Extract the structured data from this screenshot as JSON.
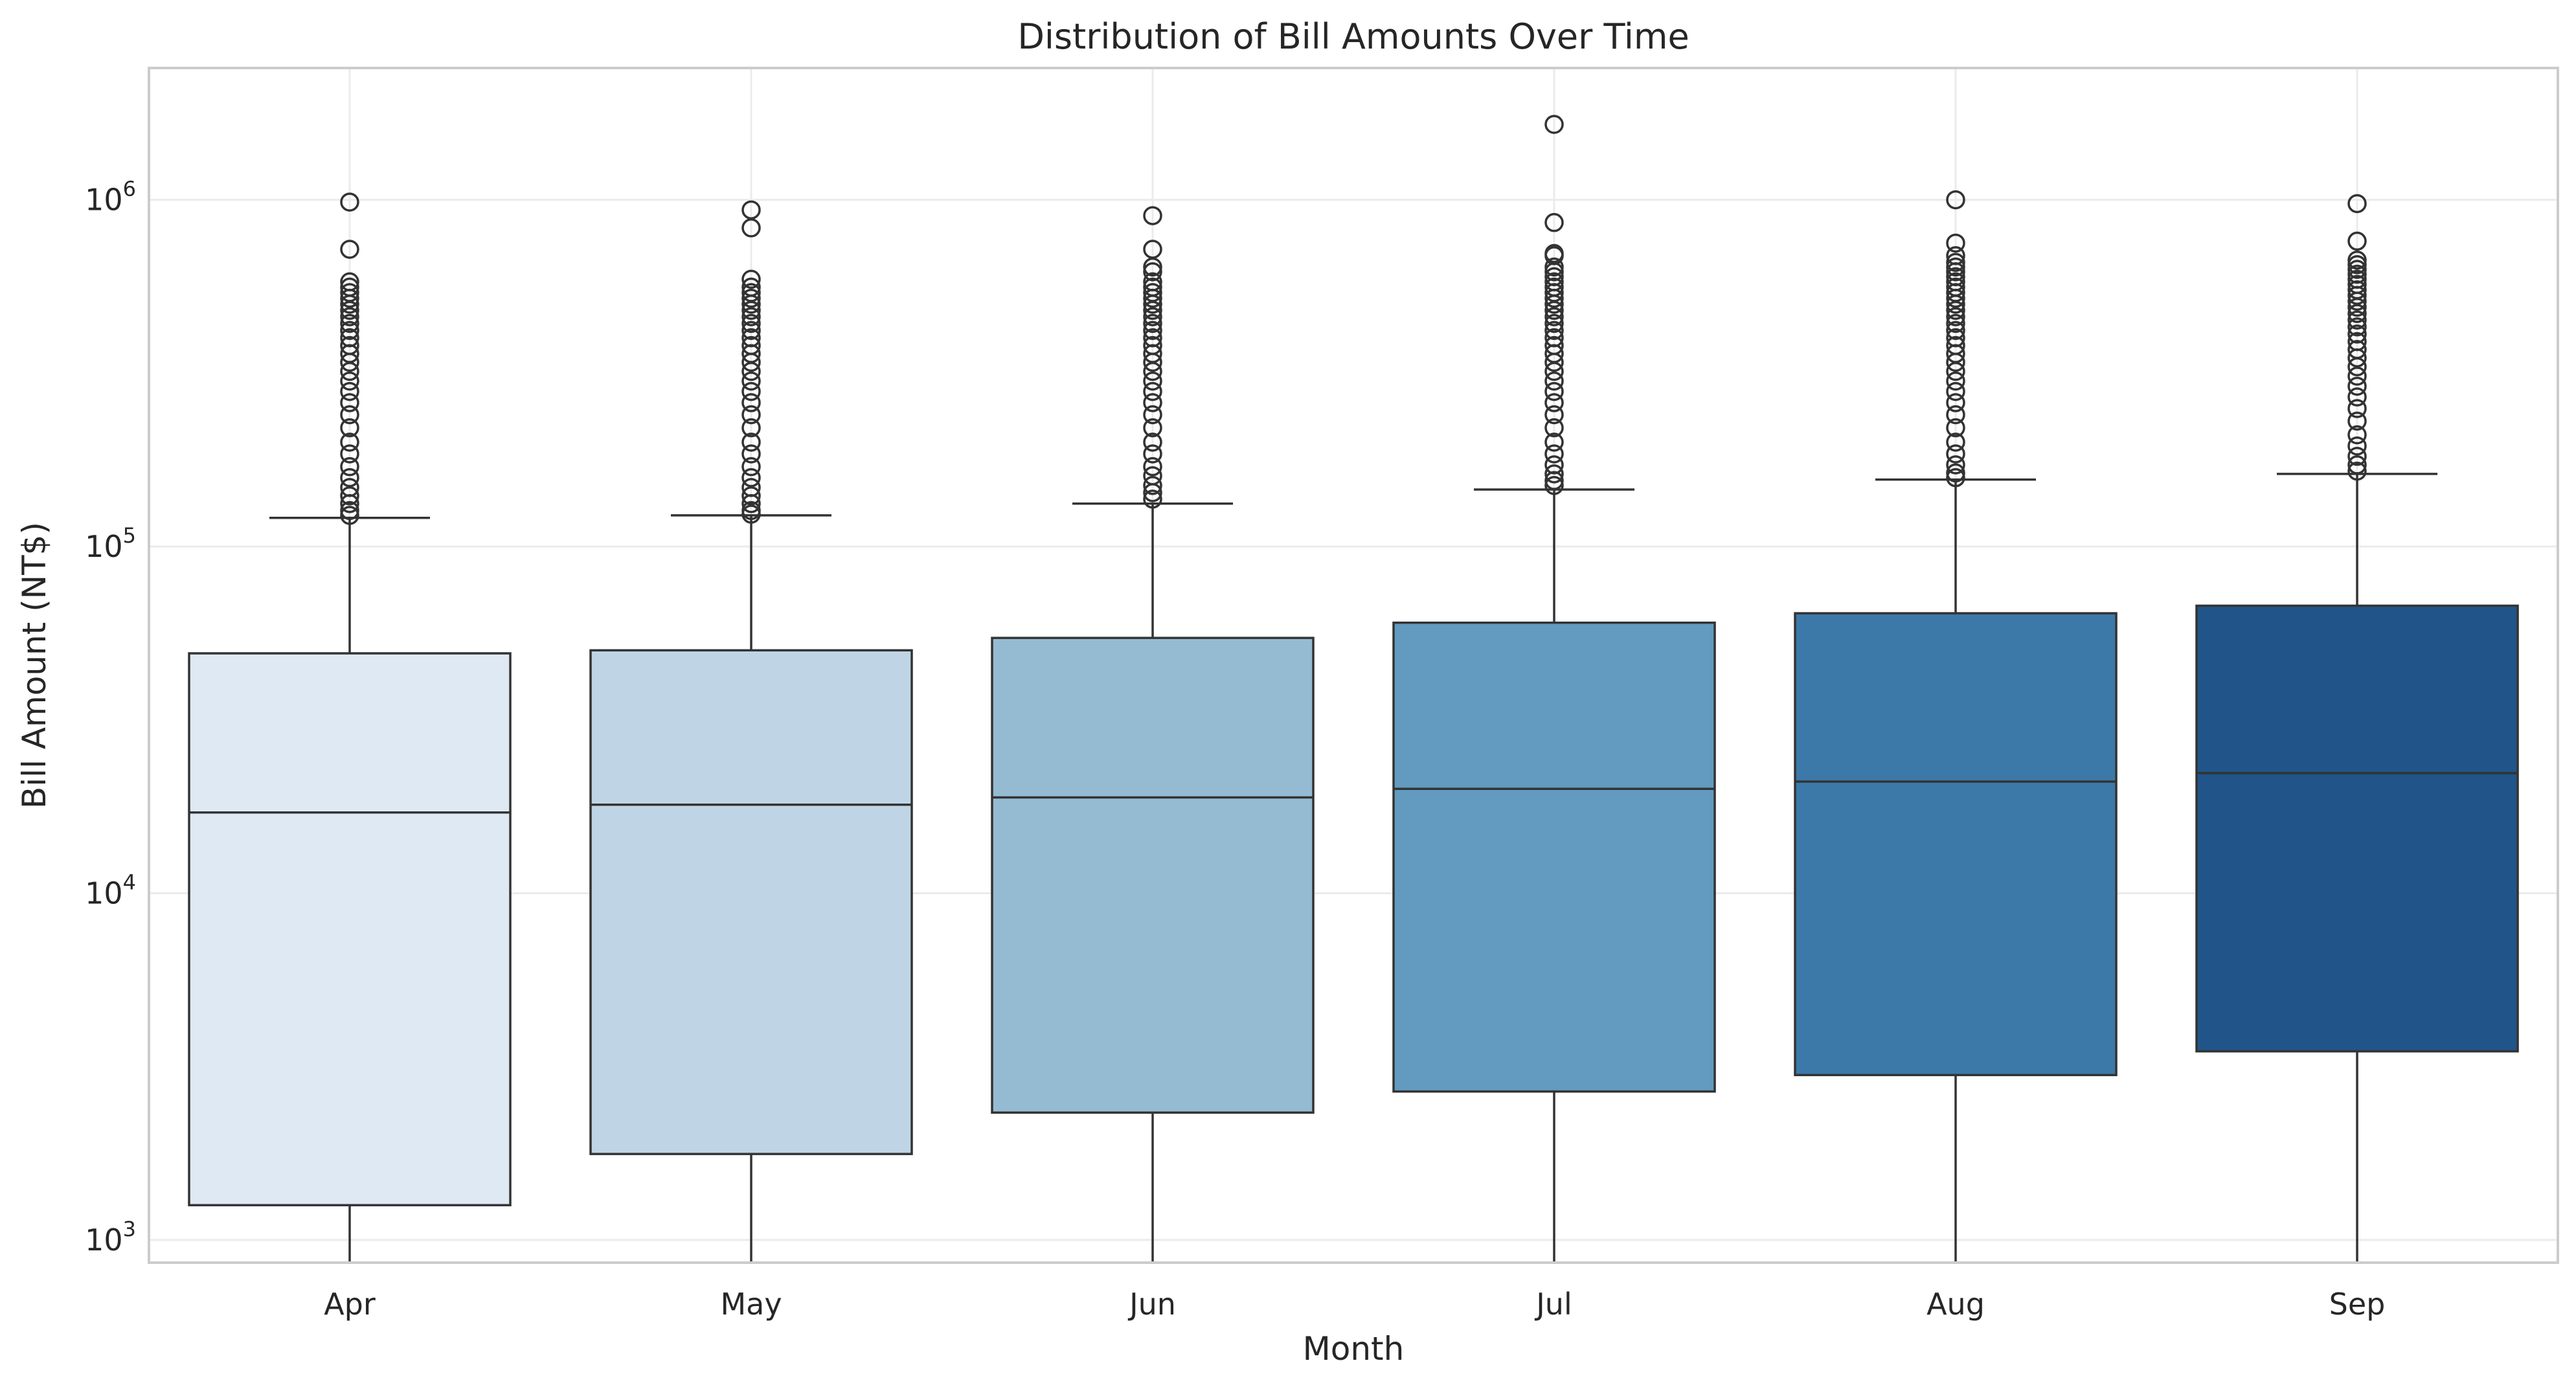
{
  "chart_data": {
    "type": "box",
    "title": "Distribution of Bill Amounts Over Time",
    "xlabel": "Month",
    "ylabel": "Bill Amount (NT$)",
    "yscale": "log",
    "ylim": [
      860,
      2400000
    ],
    "y_ticks": [
      {
        "value": 1000,
        "base": "10",
        "exp": "3"
      },
      {
        "value": 10000,
        "base": "10",
        "exp": "4"
      },
      {
        "value": 100000,
        "base": "10",
        "exp": "5"
      },
      {
        "value": 1000000,
        "base": "10",
        "exp": "6"
      }
    ],
    "grid": true,
    "categories": [
      "Apr",
      "May",
      "Jun",
      "Jul",
      "Aug",
      "Sep"
    ],
    "colors": [
      "#dfe9f4",
      "#bfd5e6",
      "#95bbd3",
      "#629bbf",
      "#3c79a9",
      "#215589"
    ],
    "boxes": [
      {
        "month": "Apr",
        "whisker_low": 860,
        "q1": 1260,
        "median": 17100,
        "q3": 49200,
        "whisker_high": 121000,
        "outliers": [
          985000,
          720000,
          580000,
          560000,
          540000,
          520000,
          500000,
          480000,
          460000,
          440000,
          420000,
          400000,
          380000,
          360000,
          340000,
          320000,
          300000,
          280000,
          260000,
          240000,
          220000,
          200000,
          185000,
          170000,
          158000,
          148000,
          140000,
          133000,
          127000,
          123000
        ]
      },
      {
        "month": "May",
        "whisker_low": 860,
        "q1": 1770,
        "median": 18000,
        "q3": 50200,
        "whisker_high": 123000,
        "outliers": [
          935000,
          830000,
          590000,
          560000,
          540000,
          520000,
          500000,
          480000,
          460000,
          440000,
          420000,
          400000,
          380000,
          360000,
          340000,
          320000,
          300000,
          280000,
          260000,
          240000,
          220000,
          200000,
          185000,
          170000,
          158000,
          148000,
          140000,
          133000,
          127000,
          124000
        ]
      },
      {
        "month": "Jun",
        "whisker_low": 860,
        "q1": 2330,
        "median": 18900,
        "q3": 54500,
        "whisker_high": 133000,
        "outliers": [
          900000,
          720000,
          640000,
          620000,
          580000,
          560000,
          540000,
          520000,
          500000,
          480000,
          460000,
          440000,
          420000,
          400000,
          380000,
          360000,
          340000,
          320000,
          300000,
          280000,
          260000,
          240000,
          220000,
          200000,
          185000,
          170000,
          160000,
          150000,
          143000,
          137000
        ]
      },
      {
        "month": "Jul",
        "whisker_low": 860,
        "q1": 2680,
        "median": 20000,
        "q3": 60300,
        "whisker_high": 146000,
        "outliers": [
          1650000,
          860000,
          700000,
          690000,
          640000,
          620000,
          600000,
          580000,
          560000,
          540000,
          520000,
          500000,
          480000,
          460000,
          440000,
          420000,
          400000,
          380000,
          360000,
          340000,
          320000,
          300000,
          280000,
          260000,
          240000,
          220000,
          200000,
          185000,
          172000,
          162000,
          155000,
          150000
        ]
      },
      {
        "month": "Aug",
        "whisker_low": 860,
        "q1": 2990,
        "median": 21000,
        "q3": 64200,
        "whisker_high": 156000,
        "outliers": [
          1000000,
          750000,
          690000,
          660000,
          640000,
          620000,
          600000,
          580000,
          560000,
          540000,
          520000,
          500000,
          480000,
          460000,
          440000,
          420000,
          400000,
          380000,
          360000,
          340000,
          320000,
          300000,
          280000,
          260000,
          240000,
          220000,
          200000,
          185000,
          172000,
          163000,
          158000
        ]
      },
      {
        "month": "Sep",
        "whisker_low": 860,
        "q1": 3500,
        "median": 22200,
        "q3": 67500,
        "whisker_high": 162000,
        "outliers": [
          975000,
          760000,
          670000,
          650000,
          630000,
          610000,
          590000,
          570000,
          550000,
          530000,
          510000,
          490000,
          470000,
          450000,
          430000,
          410000,
          390000,
          370000,
          350000,
          330000,
          310000,
          290000,
          270000,
          250000,
          230000,
          210000,
          195000,
          182000,
          172000,
          165000
        ]
      }
    ]
  }
}
